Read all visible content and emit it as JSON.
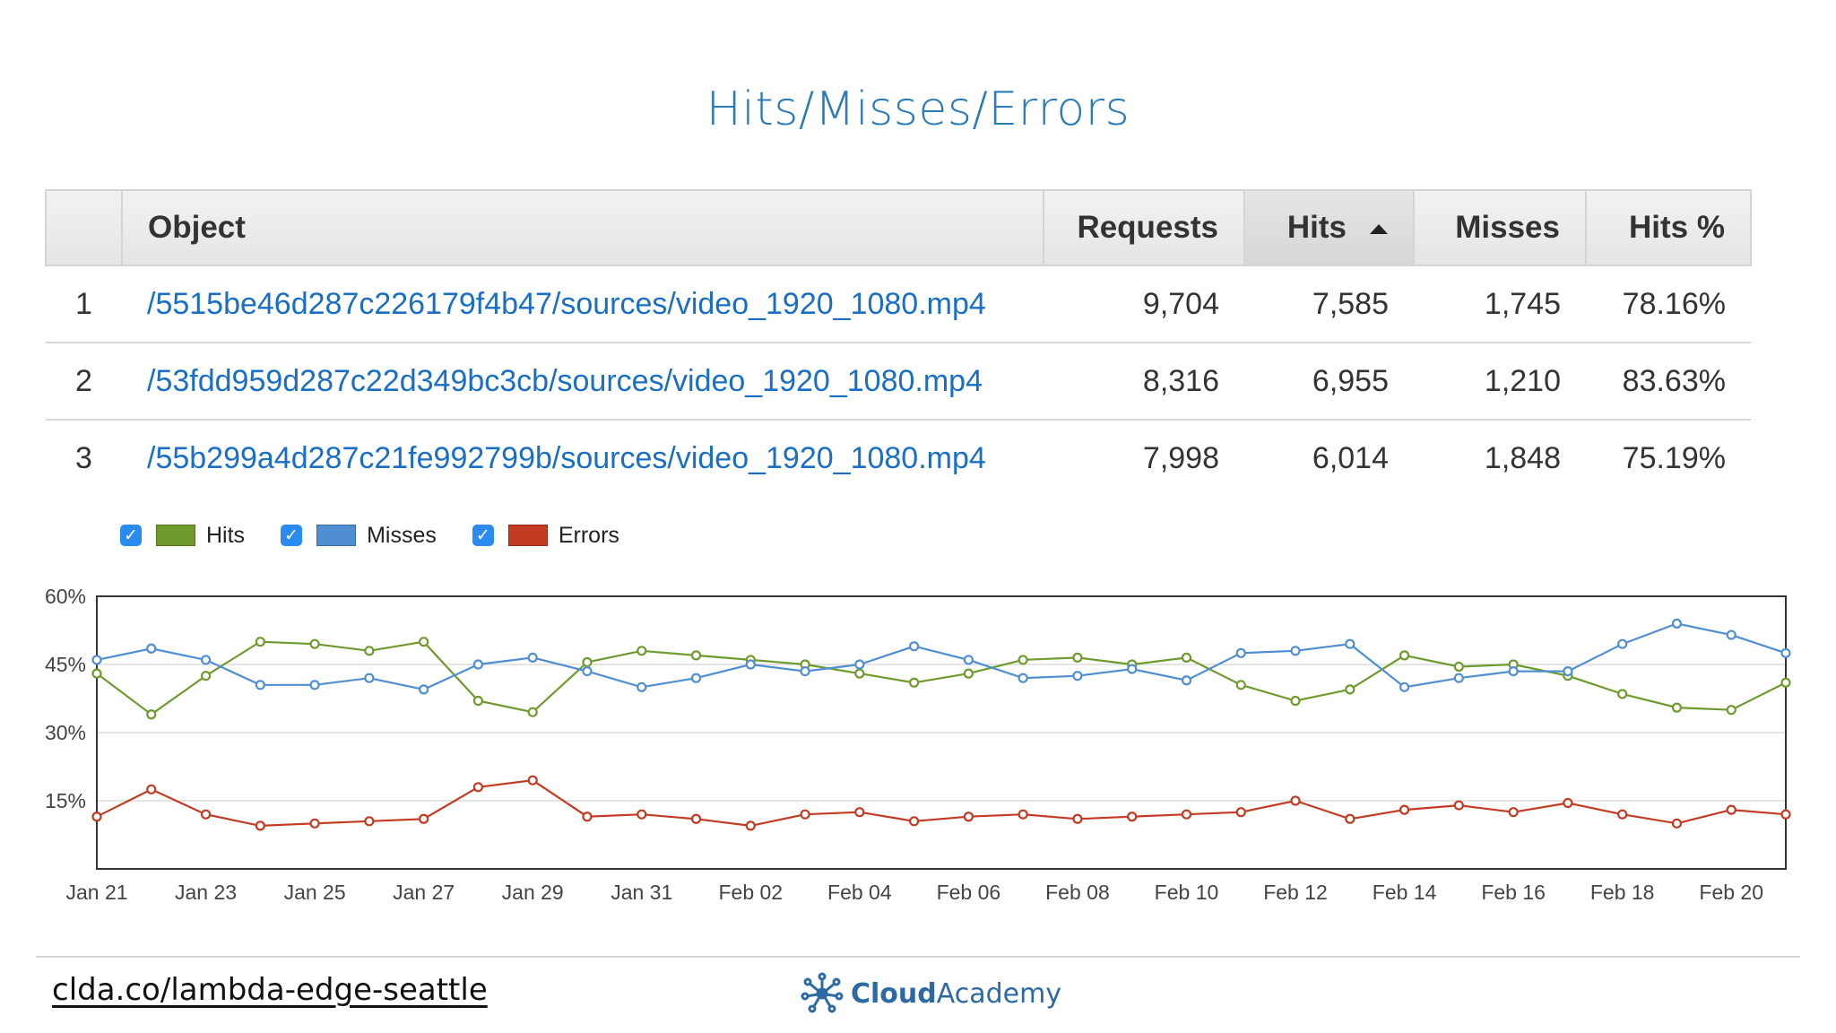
{
  "title": "Hits/Misses/Errors",
  "table": {
    "headers": {
      "index": "",
      "object": "Object",
      "requests": "Requests",
      "hits": "Hits",
      "misses": "Misses",
      "hits_pct": "Hits %"
    },
    "sorted_column": "hits",
    "rows": [
      {
        "index": "1",
        "object": "/5515be46d287c226179f4b47/sources/video_1920_1080.mp4",
        "requests": "9,704",
        "hits": "7,585",
        "misses": "1,745",
        "hits_pct": "78.16%"
      },
      {
        "index": "2",
        "object": "/53fdd959d287c22d349bc3cb/sources/video_1920_1080.mp4",
        "requests": "8,316",
        "hits": "6,955",
        "misses": "1,210",
        "hits_pct": "83.63%"
      },
      {
        "index": "3",
        "object": "/55b299a4d287c21fe992799b/sources/video_1920_1080.mp4",
        "requests": "7,998",
        "hits": "6,014",
        "misses": "1,848",
        "hits_pct": "75.19%"
      }
    ]
  },
  "legend": [
    {
      "label": "Hits",
      "checked": true,
      "color": "#6f9a2e"
    },
    {
      "label": "Misses",
      "checked": true,
      "color": "#4f8fd1"
    },
    {
      "label": "Errors",
      "checked": true,
      "color": "#c23b22"
    }
  ],
  "chart_data": {
    "type": "line",
    "title": "",
    "xlabel": "",
    "ylabel": "",
    "x": [
      "Jan 21",
      "Jan 22",
      "Jan 23",
      "Jan 24",
      "Jan 25",
      "Jan 26",
      "Jan 27",
      "Jan 28",
      "Jan 29",
      "Jan 30",
      "Jan 31",
      "Feb 01",
      "Feb 02",
      "Feb 03",
      "Feb 04",
      "Feb 05",
      "Feb 06",
      "Feb 07",
      "Feb 08",
      "Feb 09",
      "Feb 10",
      "Feb 11",
      "Feb 12",
      "Feb 13",
      "Feb 14",
      "Feb 15",
      "Feb 16",
      "Feb 17",
      "Feb 18",
      "Feb 19",
      "Feb 20",
      "Feb 21"
    ],
    "x_tick_labels": [
      "Jan 21",
      "Jan 23",
      "Jan 25",
      "Jan 27",
      "Jan 29",
      "Jan 31",
      "Feb 02",
      "Feb 04",
      "Feb 06",
      "Feb 08",
      "Feb 10",
      "Feb 12",
      "Feb 14",
      "Feb 16",
      "Feb 18",
      "Feb 20"
    ],
    "y_tick_labels": [
      "60%",
      "45%",
      "30%",
      "15%"
    ],
    "y_ticks": [
      60,
      45,
      30,
      15
    ],
    "ylim": [
      0,
      60
    ],
    "grid": true,
    "series": [
      {
        "name": "Hits",
        "color": "#6f9a2e",
        "values": [
          43,
          34,
          42.5,
          50,
          49.5,
          48,
          50,
          37,
          34.5,
          45.5,
          48,
          47,
          46,
          45,
          43,
          41,
          43,
          46,
          46.5,
          45,
          46.5,
          40.5,
          37,
          39.5,
          47,
          44.5,
          45,
          42.5,
          38.5,
          35.5,
          35,
          41
        ]
      },
      {
        "name": "Misses",
        "color": "#4f8fd1",
        "values": [
          46,
          48.5,
          46,
          40.5,
          40.5,
          42,
          39.5,
          45,
          46.5,
          43.5,
          40,
          42,
          45,
          43.5,
          45,
          49,
          46,
          42,
          42.5,
          44,
          41.5,
          47.5,
          48,
          49.5,
          40,
          42,
          43.5,
          43.5,
          49.5,
          54,
          51.5,
          47.5
        ]
      },
      {
        "name": "Errors",
        "color": "#c23b22",
        "values": [
          11.5,
          17.5,
          12,
          9.5,
          10,
          10.5,
          11,
          18,
          19.5,
          11.5,
          12,
          11,
          9.5,
          12,
          12.5,
          10.5,
          11.5,
          12,
          11,
          11.5,
          12,
          12.5,
          15,
          11,
          13,
          14,
          12.5,
          14.5,
          12,
          10,
          13,
          12
        ]
      }
    ]
  },
  "footer": {
    "link": "clda.co/lambda-edge-seattle",
    "brand_bold": "Cloud",
    "brand_light": "Academy"
  }
}
